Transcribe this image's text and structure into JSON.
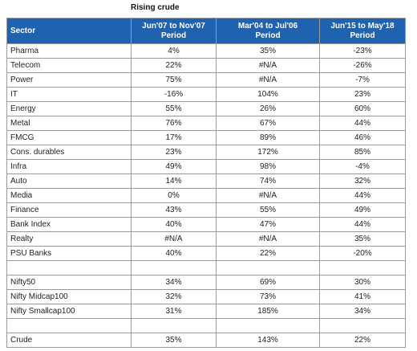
{
  "title": "Rising crude",
  "table": {
    "header": {
      "sector": "Sector",
      "periods": [
        {
          "range": "Jun'07 to Nov'07",
          "label": "Period"
        },
        {
          "range": "Mar'04 to Jul'06",
          "label": "Period"
        },
        {
          "range": "Jun'15 to May'18",
          "label": "Period"
        }
      ]
    },
    "groups": [
      [
        [
          "Pharma",
          "4%",
          "35%",
          "-23%"
        ],
        [
          "Telecom",
          "22%",
          "#N/A",
          "-26%"
        ],
        [
          "Power",
          "75%",
          "#N/A",
          "-7%"
        ],
        [
          "IT",
          "-16%",
          "104%",
          "23%"
        ],
        [
          "Energy",
          "55%",
          "26%",
          "60%"
        ],
        [
          "Metal",
          "76%",
          "67%",
          "44%"
        ],
        [
          "FMCG",
          "17%",
          "89%",
          "46%"
        ],
        [
          "Cons. durables",
          "23%",
          "172%",
          "85%"
        ],
        [
          "Infra",
          "49%",
          "98%",
          "-4%"
        ],
        [
          "Auto",
          "14%",
          "74%",
          "32%"
        ],
        [
          "Media",
          "0%",
          "#N/A",
          "44%"
        ],
        [
          "Finance",
          "43%",
          "55%",
          "49%"
        ],
        [
          "Bank Index",
          "40%",
          "47%",
          "44%"
        ],
        [
          "Realty",
          "#N/A",
          "#N/A",
          "35%"
        ],
        [
          "PSU Banks",
          "40%",
          "22%",
          "-20%"
        ]
      ],
      [
        [
          "Nifty50",
          "34%",
          "69%",
          "30%"
        ],
        [
          "Nifty Midcap100",
          "32%",
          "73%",
          "41%"
        ],
        [
          "Nifty Smallcap100",
          "31%",
          "185%",
          "34%"
        ]
      ],
      [
        [
          "Crude",
          "35%",
          "143%",
          "22%"
        ]
      ]
    ]
  }
}
